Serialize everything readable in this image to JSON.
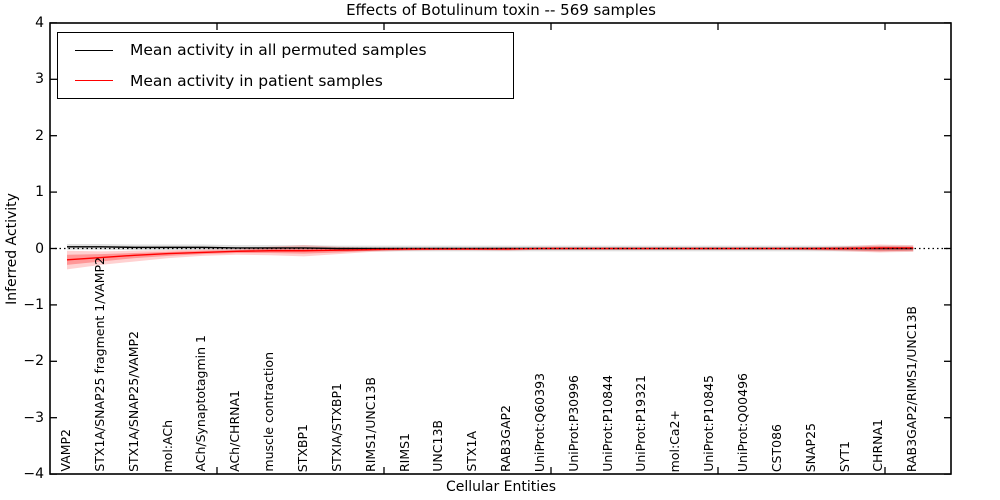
{
  "chart_data": {
    "type": "line",
    "title": "Effects of Botulinum toxin -- 569 samples",
    "xlabel": "Cellular Entities",
    "ylabel": "Inferred Activity",
    "ylim": [
      -4,
      4
    ],
    "yticks": [
      {
        "v": 4,
        "label": "4"
      },
      {
        "v": 3,
        "label": "3"
      },
      {
        "v": 2,
        "label": "2"
      },
      {
        "v": 1,
        "label": "1"
      },
      {
        "v": 0,
        "label": "0"
      },
      {
        "v": -1,
        "label": "−1"
      },
      {
        "v": -2,
        "label": "−2"
      },
      {
        "v": -3,
        "label": "−3"
      },
      {
        "v": -4,
        "label": "−4"
      }
    ],
    "grid": false,
    "legend_position": "upper left",
    "categories": [
      "VAMP2",
      "STX1A/SNAP25 fragment 1/VAMP2",
      "STX1A/SNAP25/VAMP2",
      "mol:ACh",
      "ACh/Synaptotagmin 1",
      "ACh/CHRNA1",
      "muscle contraction",
      "STXBP1",
      "STXIA/STXBP1",
      "RIMS1/UNC13B",
      "RIMS1",
      "UNC13B",
      "STX1A",
      "RAB3GAP2",
      "UniProt:Q60393",
      "UniProt:P30996",
      "UniProt:P10844",
      "UniProt:P19321",
      "mol:Ca2+",
      "UniProt:P10845",
      "UniProt:Q00496",
      "CST086",
      "SNAP25",
      "SYT1",
      "CHRNA1",
      "RAB3GAP2/RIMS1/UNC13B"
    ],
    "series": [
      {
        "name": "Mean activity in all permuted samples",
        "color": "#000000",
        "values": [
          0.03,
          0.03,
          0.02,
          0.02,
          0.02,
          0.01,
          0.01,
          0.01,
          0.0,
          0.0,
          0.0,
          0.0,
          0.0,
          0.0,
          0.0,
          0.0,
          0.0,
          0.0,
          0.0,
          0.0,
          0.0,
          0.0,
          0.0,
          0.0,
          0.0,
          0.0
        ]
      },
      {
        "name": "Mean activity in patient samples",
        "color": "#ff0000",
        "values": [
          -0.2,
          -0.16,
          -0.12,
          -0.09,
          -0.07,
          -0.05,
          -0.04,
          -0.04,
          -0.03,
          -0.02,
          -0.01,
          -0.01,
          -0.01,
          -0.01,
          0.0,
          0.0,
          0.0,
          0.0,
          0.0,
          0.0,
          0.0,
          0.0,
          0.0,
          0.0,
          0.01,
          0.01
        ]
      }
    ],
    "bands": [
      {
        "name": "permuted-samples-spread",
        "color": "#000000",
        "opacity": 0.12,
        "upper": [
          0.08,
          0.08,
          0.07,
          0.07,
          0.07,
          0.06,
          0.06,
          0.06,
          0.05,
          0.05,
          0.05,
          0.05,
          0.05,
          0.05,
          0.05,
          0.05,
          0.05,
          0.05,
          0.05,
          0.05,
          0.05,
          0.05,
          0.05,
          0.05,
          0.05,
          0.05
        ],
        "lower": [
          -0.02,
          -0.02,
          -0.03,
          -0.03,
          -0.03,
          -0.04,
          -0.04,
          -0.04,
          -0.05,
          -0.05,
          -0.05,
          -0.05,
          -0.05,
          -0.05,
          -0.05,
          -0.05,
          -0.05,
          -0.05,
          -0.05,
          -0.05,
          -0.05,
          -0.05,
          -0.05,
          -0.05,
          -0.05,
          -0.05
        ]
      },
      {
        "name": "patient-samples-spread-outer",
        "color": "#ff0000",
        "opacity": 0.18,
        "upper": [
          -0.04,
          -0.05,
          -0.04,
          -0.03,
          -0.02,
          -0.01,
          0.03,
          0.06,
          0.03,
          0.01,
          0.01,
          0.01,
          0.01,
          0.02,
          0.01,
          0.01,
          0.01,
          0.01,
          0.01,
          0.01,
          0.01,
          0.01,
          0.02,
          0.04,
          0.07,
          0.06
        ],
        "lower": [
          -0.37,
          -0.29,
          -0.23,
          -0.17,
          -0.13,
          -0.11,
          -0.12,
          -0.14,
          -0.1,
          -0.06,
          -0.04,
          -0.03,
          -0.03,
          -0.04,
          -0.02,
          -0.02,
          -0.02,
          -0.02,
          -0.02,
          -0.02,
          -0.02,
          -0.02,
          -0.03,
          -0.05,
          -0.07,
          -0.06
        ]
      },
      {
        "name": "patient-samples-spread-inner",
        "color": "#ff0000",
        "opacity": 0.28,
        "upper": [
          -0.11,
          -0.1,
          -0.08,
          -0.06,
          -0.04,
          -0.03,
          0.0,
          0.01,
          0.0,
          -0.01,
          0.0,
          0.0,
          0.0,
          0.01,
          0.0,
          0.0,
          0.0,
          0.0,
          0.0,
          0.0,
          0.0,
          0.0,
          0.01,
          0.02,
          0.04,
          0.03
        ],
        "lower": [
          -0.29,
          -0.23,
          -0.17,
          -0.13,
          -0.1,
          -0.08,
          -0.08,
          -0.09,
          -0.07,
          -0.04,
          -0.03,
          -0.02,
          -0.02,
          -0.02,
          -0.01,
          -0.01,
          -0.01,
          -0.01,
          -0.01,
          -0.01,
          -0.01,
          -0.01,
          -0.02,
          -0.03,
          -0.05,
          -0.04
        ]
      }
    ],
    "zero_line": {
      "y": 0,
      "style": "dotted",
      "color": "#000000"
    }
  }
}
